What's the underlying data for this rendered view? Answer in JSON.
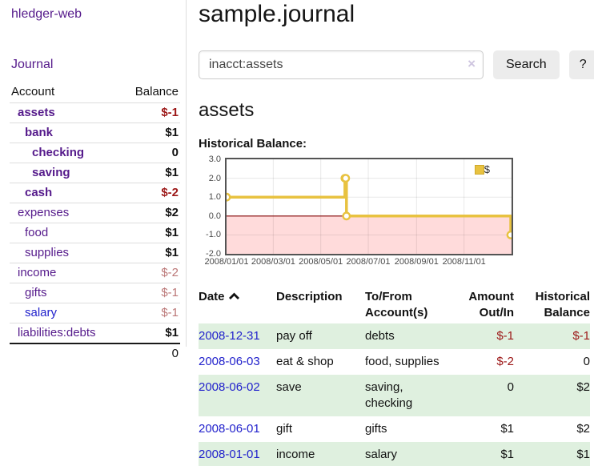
{
  "colors": {
    "link_purple": "#551a8b",
    "link_blue": "#2222cc",
    "negative_strong": "#9c1717",
    "negative_dim": "#bb7777",
    "row_stripe_green": "#dff0df",
    "chart_line_gold": "#e8c240",
    "chart_negative_region": "#ffdbdb",
    "chart_zero_line": "#800000"
  },
  "sidebar": {
    "app_title": "hledger-web",
    "nav": {
      "journal_label": "Journal"
    },
    "accounts_table": {
      "headers": [
        "Account",
        "Balance"
      ],
      "rows": [
        {
          "account": "assets",
          "balance": "$-1"
        },
        {
          "account": "bank",
          "balance": "$1"
        },
        {
          "account": "checking",
          "balance": "0"
        },
        {
          "account": "saving",
          "balance": "$1"
        },
        {
          "account": "cash",
          "balance": "$-2"
        },
        {
          "account": "expenses",
          "balance": "$2"
        },
        {
          "account": "food",
          "balance": "$1"
        },
        {
          "account": "supplies",
          "balance": "$1"
        },
        {
          "account": "income",
          "balance": "$-2"
        },
        {
          "account": "gifts",
          "balance": "$-1"
        },
        {
          "account": "salary",
          "balance": "$-1"
        },
        {
          "account": "liabilities:debts",
          "balance": "$1"
        }
      ],
      "total": "0"
    }
  },
  "main": {
    "title": "sample.journal",
    "search": {
      "value": "inacct:assets",
      "clear_icon": "×",
      "button_label": "Search",
      "help_label": "?"
    },
    "account_heading": "assets",
    "chart_label": "Historical Balance:",
    "chart_data": {
      "type": "line",
      "step": true,
      "title": "Historical Balance",
      "series": [
        {
          "name": "$",
          "color": "#e8c240",
          "points": [
            [
              "2008-01-01",
              1
            ],
            [
              "2008-06-01",
              2
            ],
            [
              "2008-06-02",
              2
            ],
            [
              "2008-06-03",
              0
            ],
            [
              "2008-12-31",
              -1
            ]
          ]
        }
      ],
      "ylim": [
        -2,
        3
      ],
      "yticks": [
        3,
        2,
        1,
        0,
        -1,
        -2
      ],
      "xticks": [
        "2008/01/01",
        "2008/03/01",
        "2008/05/01",
        "2008/07/01",
        "2008/09/01",
        "2008/11/01"
      ],
      "xrange": [
        "2008-01-01",
        "2009-01-01"
      ],
      "legend_position": "top-right",
      "grid": true,
      "negative_region_color": "#ffdbdb",
      "zero_line_color": "#800000"
    },
    "register_table": {
      "sort": "date ascending",
      "headers": [
        "Date",
        "Description",
        "To/From Account(s)",
        "Amount Out/In",
        "Historical Balance"
      ],
      "rows": [
        {
          "date": "2008-12-31",
          "description": "pay off",
          "accounts": "debts",
          "amount": "$-1",
          "balance": "$-1"
        },
        {
          "date": "2008-06-03",
          "description": "eat & shop",
          "accounts": "food, supplies",
          "amount": "$-2",
          "balance": "0"
        },
        {
          "date": "2008-06-02",
          "description": "save",
          "accounts": "saving, checking",
          "amount": "0",
          "balance": "$2"
        },
        {
          "date": "2008-06-01",
          "description": "gift",
          "accounts": "gifts",
          "amount": "$1",
          "balance": "$2"
        },
        {
          "date": "2008-01-01",
          "description": "income",
          "accounts": "salary",
          "amount": "$1",
          "balance": "$1"
        }
      ]
    }
  }
}
